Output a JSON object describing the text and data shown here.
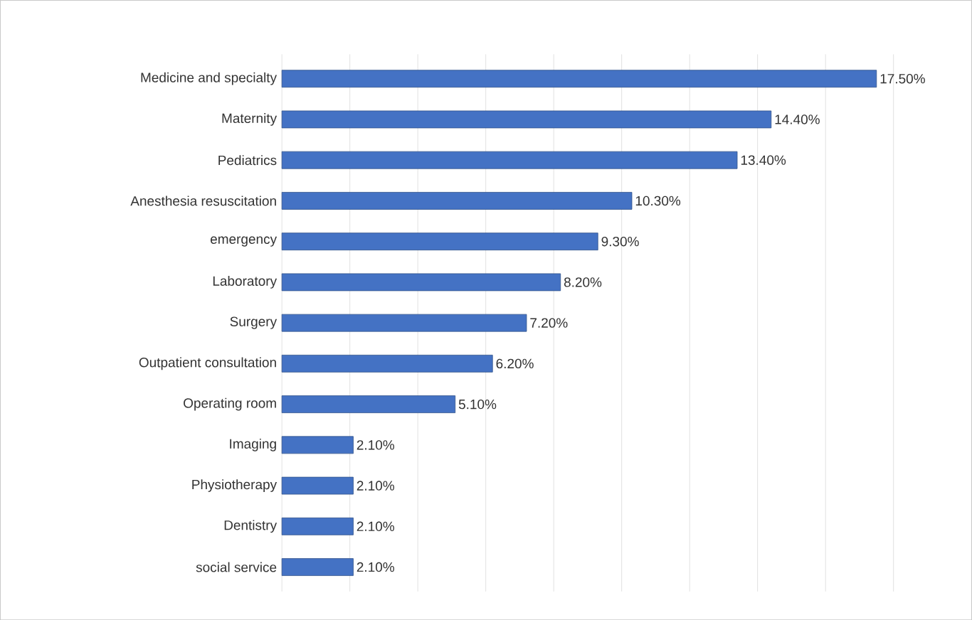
{
  "chart_data": {
    "type": "bar",
    "orientation": "horizontal",
    "categories": [
      "Medicine and specialty",
      "Maternity",
      "Pediatrics",
      "Anesthesia resuscitation",
      "emergency",
      "Laboratory",
      "Surgery",
      "Outpatient consultation",
      "Operating room",
      "Imaging",
      "Physiotherapy",
      "Dentistry",
      "social service"
    ],
    "values": [
      17.5,
      14.4,
      13.4,
      10.3,
      9.3,
      8.2,
      7.2,
      6.2,
      5.1,
      2.1,
      2.1,
      2.1,
      2.1
    ],
    "value_labels": [
      "17.50%",
      "14.40%",
      "13.40%",
      "10.30%",
      "9.30%",
      "8.20%",
      "7.20%",
      "6.20%",
      "5.10%",
      "2.10%",
      "2.10%",
      "2.10%",
      "2.10%"
    ],
    "color": "#4472c4",
    "xlim": [
      0,
      18
    ],
    "xticks": [
      {
        "value": 0,
        "label": null
      },
      {
        "value": 2,
        "label": null
      },
      {
        "value": 4,
        "label": null
      },
      {
        "value": 6,
        "label": null
      },
      {
        "value": 8,
        "label": null
      },
      {
        "value": 10,
        "label": null
      },
      {
        "value": 12,
        "label": null
      },
      {
        "value": 14,
        "label": null
      },
      {
        "value": 16,
        "label": null
      },
      {
        "value": 18,
        "label": null
      }
    ],
    "tick_labels": "y",
    "grid": "x"
  }
}
